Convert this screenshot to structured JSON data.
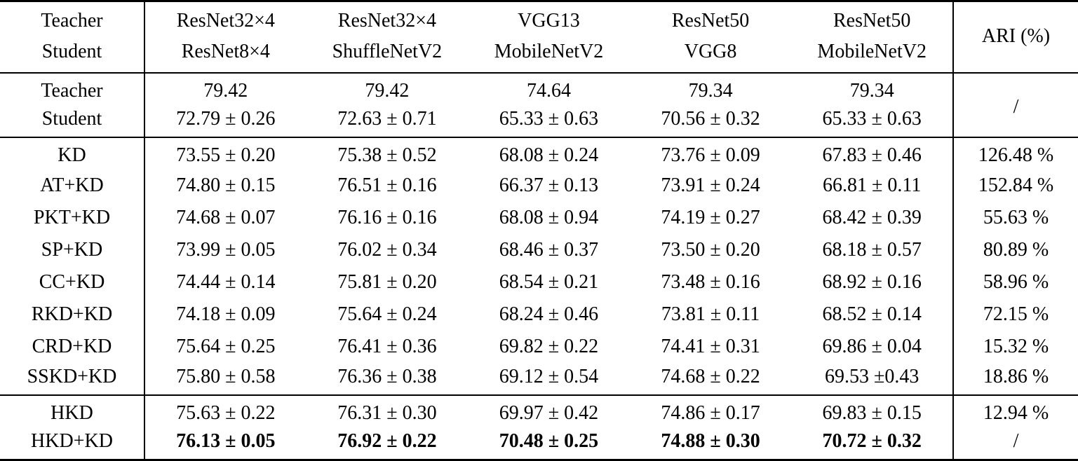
{
  "figure": {
    "kind": "paper-results-table"
  },
  "colors": {
    "text": "#000000",
    "background": "#ffffff",
    "rule": "#000000"
  },
  "table": {
    "header": {
      "row_label": {
        "line1": "Teacher",
        "line2": "Student"
      },
      "pairs": [
        {
          "teacher": "ResNet32×4",
          "student": "ResNet8×4"
        },
        {
          "teacher": "ResNet32×4",
          "student": "ShuffleNetV2"
        },
        {
          "teacher": "VGG13",
          "student": "MobileNetV2"
        },
        {
          "teacher": "ResNet50",
          "student": "VGG8"
        },
        {
          "teacher": "ResNet50",
          "student": "MobileNetV2"
        }
      ],
      "ari_label": "ARI (%)"
    },
    "sections": [
      {
        "name": "baseline",
        "ari_merged": "/",
        "rows": [
          {
            "label": "Teacher",
            "values": [
              "79.42",
              "79.42",
              "74.64",
              "79.34",
              "79.34"
            ],
            "bold": false
          },
          {
            "label": "Student",
            "values": [
              "72.79 ± 0.26",
              "72.63 ± 0.71",
              "65.33 ± 0.63",
              "70.56 ± 0.32",
              "65.33 ± 0.63"
            ],
            "bold": false
          }
        ]
      },
      {
        "name": "prior-methods",
        "rows": [
          {
            "label": "KD",
            "values": [
              "73.55 ± 0.20",
              "75.38 ± 0.52",
              "68.08 ± 0.24",
              "73.76 ± 0.09",
              "67.83 ± 0.46"
            ],
            "ari": "126.48 %",
            "bold": false
          },
          {
            "label": "AT+KD",
            "values": [
              "74.80 ± 0.15",
              "76.51 ± 0.16",
              "66.37 ± 0.13",
              "73.91 ± 0.24",
              "66.81 ± 0.11"
            ],
            "ari": "152.84 %",
            "bold": false
          },
          {
            "label": "PKT+KD",
            "values": [
              "74.68 ± 0.07",
              "76.16 ± 0.16",
              "68.08 ± 0.94",
              "74.19 ± 0.27",
              "68.42 ± 0.39"
            ],
            "ari": "55.63 %",
            "bold": false
          },
          {
            "label": "SP+KD",
            "values": [
              "73.99 ± 0.05",
              "76.02 ± 0.34",
              "68.46 ± 0.37",
              "73.50 ± 0.20",
              "68.18 ± 0.57"
            ],
            "ari": "80.89 %",
            "bold": false
          },
          {
            "label": "CC+KD",
            "values": [
              "74.44 ± 0.14",
              "75.81 ± 0.20",
              "68.54 ± 0.21",
              "73.48 ± 0.16",
              "68.92 ± 0.16"
            ],
            "ari": "58.96 %",
            "bold": false
          },
          {
            "label": "RKD+KD",
            "values": [
              "74.18 ± 0.09",
              "75.64 ± 0.24",
              "68.24 ± 0.46",
              "73.81 ± 0.11",
              "68.52 ± 0.14"
            ],
            "ari": "72.15 %",
            "bold": false
          },
          {
            "label": "CRD+KD",
            "values": [
              "75.64 ± 0.25",
              "76.41 ± 0.36",
              "69.82 ± 0.22",
              "74.41 ± 0.31",
              "69.86 ± 0.04"
            ],
            "ari": "15.32 %",
            "bold": false
          },
          {
            "label": "SSKD+KD",
            "values": [
              "75.80 ± 0.58",
              "76.36 ± 0.38",
              "69.12 ± 0.54",
              "74.68 ± 0.22",
              "69.53 ±0.43"
            ],
            "ari": "18.86 %",
            "bold": false
          }
        ]
      },
      {
        "name": "hkd-ours",
        "rows": [
          {
            "label": "HKD",
            "values": [
              "75.63 ± 0.22",
              "76.31 ± 0.30",
              "69.97 ± 0.42",
              "74.86 ± 0.17",
              "69.83 ± 0.15"
            ],
            "ari": "12.94 %",
            "bold": false
          },
          {
            "label": "HKD+KD",
            "values": [
              "76.13 ± 0.05",
              "76.92 ± 0.22",
              "70.48 ± 0.25",
              "74.88 ± 0.30",
              "70.72 ± 0.32"
            ],
            "ari": "/",
            "bold": true
          }
        ]
      }
    ]
  }
}
